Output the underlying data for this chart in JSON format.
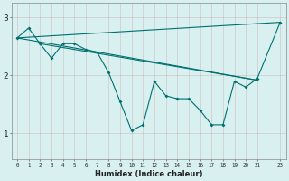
{
  "xlabel": "Humidex (Indice chaleur)",
  "ylabel": "",
  "bg_color": "#d8f0f0",
  "grid_color": "#b0c8c8",
  "line_color": "#007070",
  "xlim": [
    -0.5,
    23.5
  ],
  "ylim": [
    0.55,
    3.25
  ],
  "yticks": [
    1,
    2,
    3
  ],
  "xticks": [
    0,
    1,
    2,
    3,
    4,
    5,
    6,
    7,
    8,
    9,
    10,
    11,
    12,
    13,
    14,
    15,
    16,
    17,
    18,
    19,
    20,
    21,
    23
  ],
  "main_x": [
    0,
    1,
    2,
    3,
    4,
    5,
    6,
    7,
    8,
    9,
    10,
    11,
    12,
    13,
    14,
    15,
    16,
    17,
    18,
    19,
    20,
    21,
    23
  ],
  "main_y": [
    2.65,
    2.82,
    2.55,
    2.3,
    2.55,
    2.55,
    2.45,
    2.4,
    2.05,
    1.55,
    1.05,
    1.15,
    1.9,
    1.65,
    1.6,
    1.6,
    1.4,
    1.15,
    1.15,
    1.9,
    1.8,
    1.95,
    2.92
  ],
  "line1_x": [
    0,
    23
  ],
  "line1_y": [
    2.65,
    2.92
  ],
  "line2_x": [
    0,
    21
  ],
  "line2_y": [
    2.65,
    1.92
  ],
  "line3_x": [
    2,
    21
  ],
  "line3_y": [
    2.55,
    1.92
  ]
}
